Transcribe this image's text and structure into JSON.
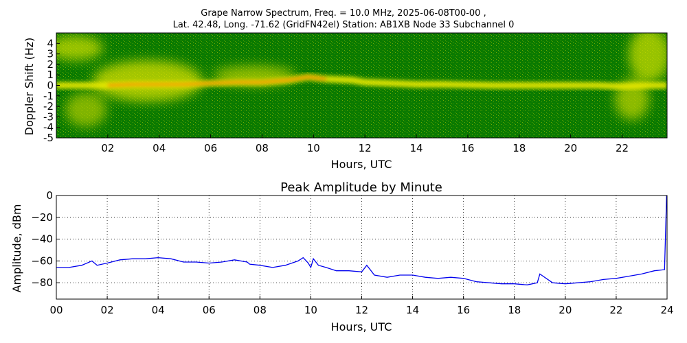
{
  "title_line1": "Grape Narrow Spectrum, Freq. = 10.0 MHz, 2025-06-08T00-00 ,",
  "title_line2": "Lat.  42.48, Long. -71.62 (GridFN42el) Station: AB1XB Node 33 Subchannel 0",
  "chart_data": [
    {
      "type": "heatmap",
      "xlabel": "Hours, UTC",
      "ylabel": "Doppler Shift (Hz)",
      "xlim": [
        0,
        23.75
      ],
      "ylim": [
        -5,
        5
      ],
      "x_ticks": [
        {
          "v": 2,
          "label": "02"
        },
        {
          "v": 4,
          "label": "04"
        },
        {
          "v": 6,
          "label": "06"
        },
        {
          "v": 8,
          "label": "08"
        },
        {
          "v": 10,
          "label": "10"
        },
        {
          "v": 12,
          "label": "12"
        },
        {
          "v": 14,
          "label": "14"
        },
        {
          "v": 16,
          "label": "16"
        },
        {
          "v": 18,
          "label": "18"
        },
        {
          "v": 20,
          "label": "20"
        },
        {
          "v": 22,
          "label": "22"
        }
      ],
      "y_ticks": [
        {
          "v": 4,
          "label": "4"
        },
        {
          "v": 3,
          "label": "3"
        },
        {
          "v": 2,
          "label": "2"
        },
        {
          "v": 1,
          "label": "1"
        },
        {
          "v": 0,
          "label": "0"
        },
        {
          "v": -1,
          "label": "-1"
        },
        {
          "v": -2,
          "label": "-2"
        },
        {
          "v": -3,
          "label": "-3"
        },
        {
          "v": -4,
          "label": "-4"
        },
        {
          "v": -5,
          "label": "-5"
        }
      ],
      "colors": {
        "background": "#0a7a00",
        "mid": "#e8e800",
        "peak": "#ff3000"
      },
      "doppler_trace": {
        "hours": [
          0,
          1,
          2,
          3,
          4,
          5,
          6,
          7,
          8,
          9,
          9.8,
          10.5,
          11.5,
          12,
          13,
          14,
          15,
          16,
          17,
          18,
          19,
          20,
          21,
          22,
          23,
          23.75
        ],
        "hz": [
          0,
          0,
          0,
          0.1,
          0.1,
          0.1,
          0.2,
          0.3,
          0.3,
          0.5,
          0.8,
          0.6,
          0.5,
          0.3,
          0.2,
          0.1,
          0.1,
          0.05,
          0,
          0,
          0,
          0,
          0,
          -0.1,
          0,
          0
        ]
      }
    },
    {
      "type": "line",
      "title": "Peak Amplitude by Minute",
      "xlabel": "Hours, UTC",
      "ylabel": "Amplitude, dBm",
      "xlim": [
        0,
        24
      ],
      "ylim": [
        -95,
        0
      ],
      "grid": true,
      "line_color": "#0000ee",
      "x_ticks": [
        {
          "v": 0,
          "label": "00"
        },
        {
          "v": 2,
          "label": "02"
        },
        {
          "v": 4,
          "label": "04"
        },
        {
          "v": 6,
          "label": "06"
        },
        {
          "v": 8,
          "label": "08"
        },
        {
          "v": 10,
          "label": "10"
        },
        {
          "v": 12,
          "label": "12"
        },
        {
          "v": 14,
          "label": "14"
        },
        {
          "v": 16,
          "label": "16"
        },
        {
          "v": 18,
          "label": "18"
        },
        {
          "v": 20,
          "label": "20"
        },
        {
          "v": 22,
          "label": "22"
        },
        {
          "v": 24,
          "label": "24"
        }
      ],
      "y_ticks": [
        {
          "v": 0,
          "label": "0"
        },
        {
          "v": -20,
          "label": "−20"
        },
        {
          "v": -40,
          "label": "−40"
        },
        {
          "v": -60,
          "label": "−60"
        },
        {
          "v": -80,
          "label": "−80"
        }
      ],
      "x": [
        0.0,
        0.5,
        1.0,
        1.4,
        1.6,
        2.0,
        2.5,
        3.0,
        3.5,
        4.0,
        4.5,
        5.0,
        5.5,
        6.0,
        6.5,
        7.0,
        7.5,
        7.6,
        8.0,
        8.5,
        9.0,
        9.5,
        9.7,
        9.9,
        10.0,
        10.1,
        10.3,
        10.6,
        11.0,
        11.5,
        12.0,
        12.2,
        12.5,
        13.0,
        13.5,
        14.0,
        14.5,
        15.0,
        15.5,
        16.0,
        16.5,
        17.0,
        17.5,
        18.0,
        18.5,
        18.9,
        19.0,
        19.5,
        20.0,
        20.5,
        21.0,
        21.5,
        22.0,
        22.5,
        23.0,
        23.5,
        23.9,
        23.98
      ],
      "y": [
        -66,
        -66,
        -64,
        -60,
        -64,
        -62,
        -59,
        -58,
        -58,
        -57,
        -58,
        -61,
        -61,
        -62,
        -61,
        -59,
        -61,
        -63,
        -64,
        -66,
        -64,
        -60,
        -57,
        -62,
        -66,
        -58,
        -64,
        -66,
        -69,
        -69,
        -70,
        -64,
        -73,
        -75,
        -73,
        -73,
        -75,
        -76,
        -75,
        -76,
        -79,
        -80,
        -81,
        -81,
        -82,
        -80,
        -72,
        -80,
        -81,
        -80,
        -79,
        -77,
        -76,
        -74,
        -72,
        -69,
        -68,
        0
      ]
    }
  ]
}
